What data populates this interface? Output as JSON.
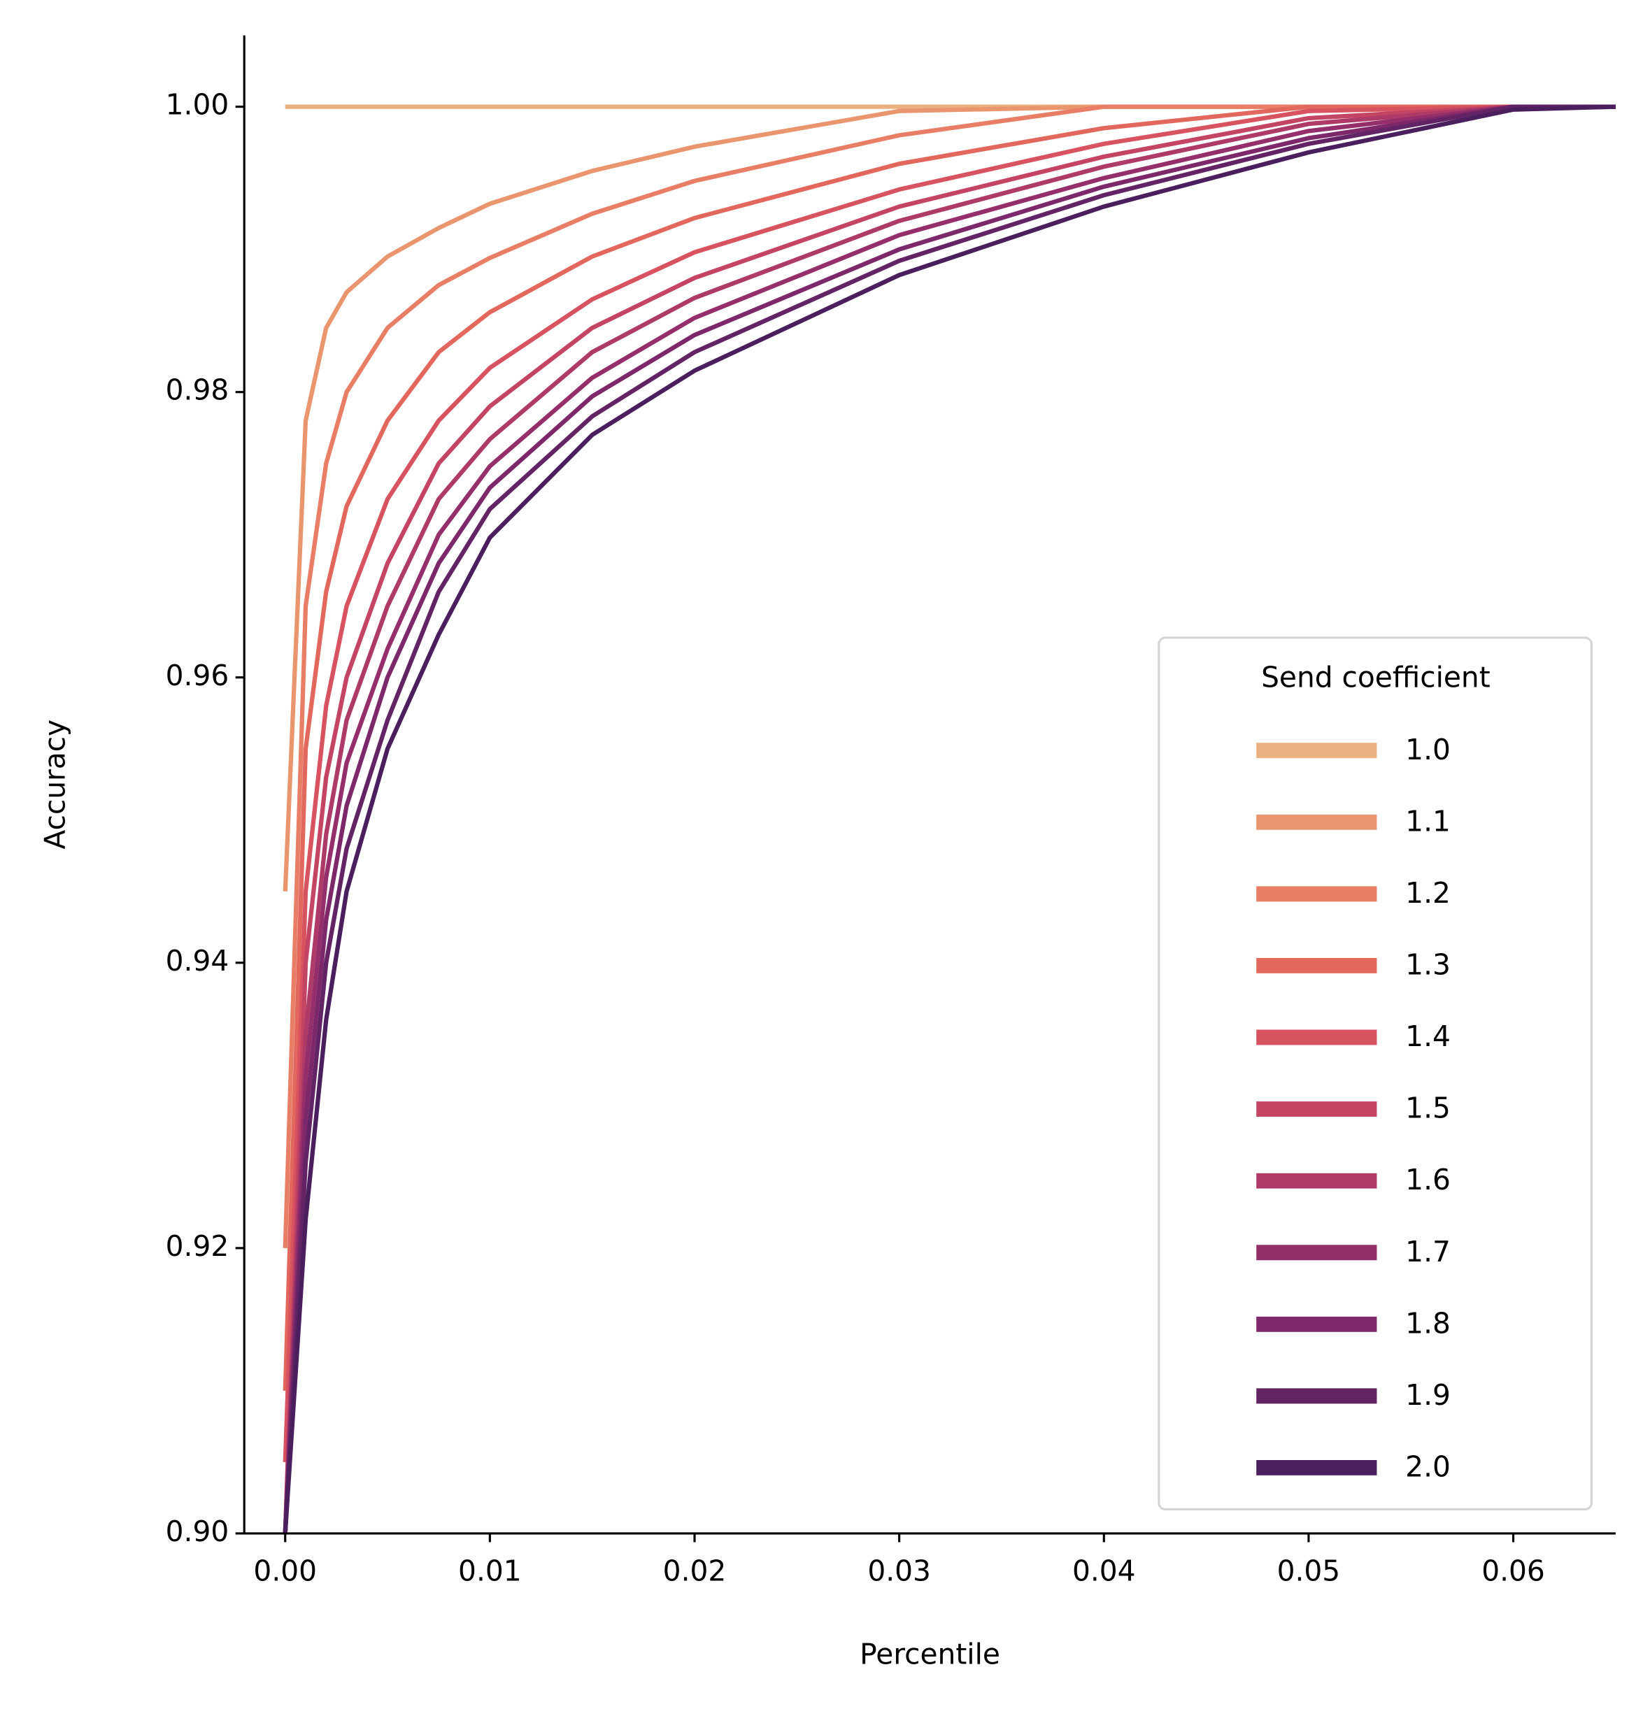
{
  "chart_data": {
    "type": "line",
    "x_label": "Percentile",
    "y_label": "Accuracy",
    "legend_title": "Send coefficient",
    "legend": "lower right",
    "x": [
      0,
      0.001,
      0.002,
      0.003,
      0.005,
      0.0075,
      0.01,
      0.015,
      0.02,
      0.03,
      0.04,
      0.05,
      0.06,
      0.065
    ],
    "series": [
      {
        "name": "1.0",
        "color": "#ebb07f",
        "values": [
          1,
          1,
          1,
          1,
          1,
          1,
          1,
          1,
          1,
          1,
          1,
          1,
          1,
          1
        ]
      },
      {
        "name": "1.1",
        "color": "#e9966f",
        "values": [
          0.945,
          0.978,
          0.9845,
          0.987,
          0.9895,
          0.9915,
          0.9932,
          0.9955,
          0.9972,
          0.9997,
          1,
          1,
          1,
          1
        ]
      },
      {
        "name": "1.2",
        "color": "#e77e65",
        "values": [
          0.92,
          0.965,
          0.975,
          0.98,
          0.9845,
          0.9875,
          0.9894,
          0.9925,
          0.9948,
          0.998,
          1,
          1,
          1,
          1
        ]
      },
      {
        "name": "1.3",
        "color": "#e2675d",
        "values": [
          0.91,
          0.955,
          0.966,
          0.972,
          0.978,
          0.9828,
          0.9856,
          0.9895,
          0.9922,
          0.996,
          0.9985,
          1,
          1,
          1
        ]
      },
      {
        "name": "1.4",
        "color": "#d6535f",
        "values": [
          0.905,
          0.945,
          0.958,
          0.965,
          0.9725,
          0.978,
          0.9817,
          0.9865,
          0.9898,
          0.9942,
          0.9974,
          0.9997,
          1,
          1
        ]
      },
      {
        "name": "1.5",
        "color": "#c44464",
        "values": [
          0.9,
          0.94,
          0.953,
          0.96,
          0.968,
          0.975,
          0.979,
          0.9845,
          0.988,
          0.993,
          0.9965,
          0.9992,
          1,
          1
        ]
      },
      {
        "name": "1.6",
        "color": "#ad3a67",
        "values": [
          0.9,
          0.935,
          0.949,
          0.957,
          0.965,
          0.9725,
          0.9767,
          0.9828,
          0.9866,
          0.992,
          0.9958,
          0.9988,
          1,
          1
        ]
      },
      {
        "name": "1.7",
        "color": "#952f6b",
        "values": [
          0.9,
          0.932,
          0.946,
          0.954,
          0.962,
          0.97,
          0.9748,
          0.981,
          0.9852,
          0.991,
          0.995,
          0.9983,
          1,
          1
        ]
      },
      {
        "name": "1.8",
        "color": "#7c286a",
        "values": [
          0.9,
          0.929,
          0.943,
          0.951,
          0.96,
          0.968,
          0.9733,
          0.9797,
          0.984,
          0.99,
          0.9944,
          0.9978,
          1,
          1
        ]
      },
      {
        "name": "1.9",
        "color": "#632465",
        "values": [
          0.9,
          0.926,
          0.94,
          0.948,
          0.957,
          0.966,
          0.9718,
          0.9783,
          0.9828,
          0.9892,
          0.9938,
          0.9974,
          1,
          1
        ]
      },
      {
        "name": "2.0",
        "color": "#4b1f5e",
        "values": [
          0.9,
          0.922,
          0.936,
          0.945,
          0.955,
          0.963,
          0.9698,
          0.977,
          0.9815,
          0.9882,
          0.993,
          0.9968,
          0.9998,
          1
        ]
      }
    ],
    "xlim": [
      -0.002,
      0.065
    ],
    "ylim": [
      0.9,
      1.005
    ],
    "xticks": [
      {
        "value": 0,
        "label": "0.00"
      },
      0.01,
      0.02,
      0.03,
      0.04,
      0.05,
      0.06
    ],
    "yticks": [
      {
        "value": 0.9,
        "label": "0.90"
      },
      0.92,
      0.94,
      0.96,
      0.98,
      {
        "value": 1,
        "label": "1.00"
      }
    ]
  }
}
